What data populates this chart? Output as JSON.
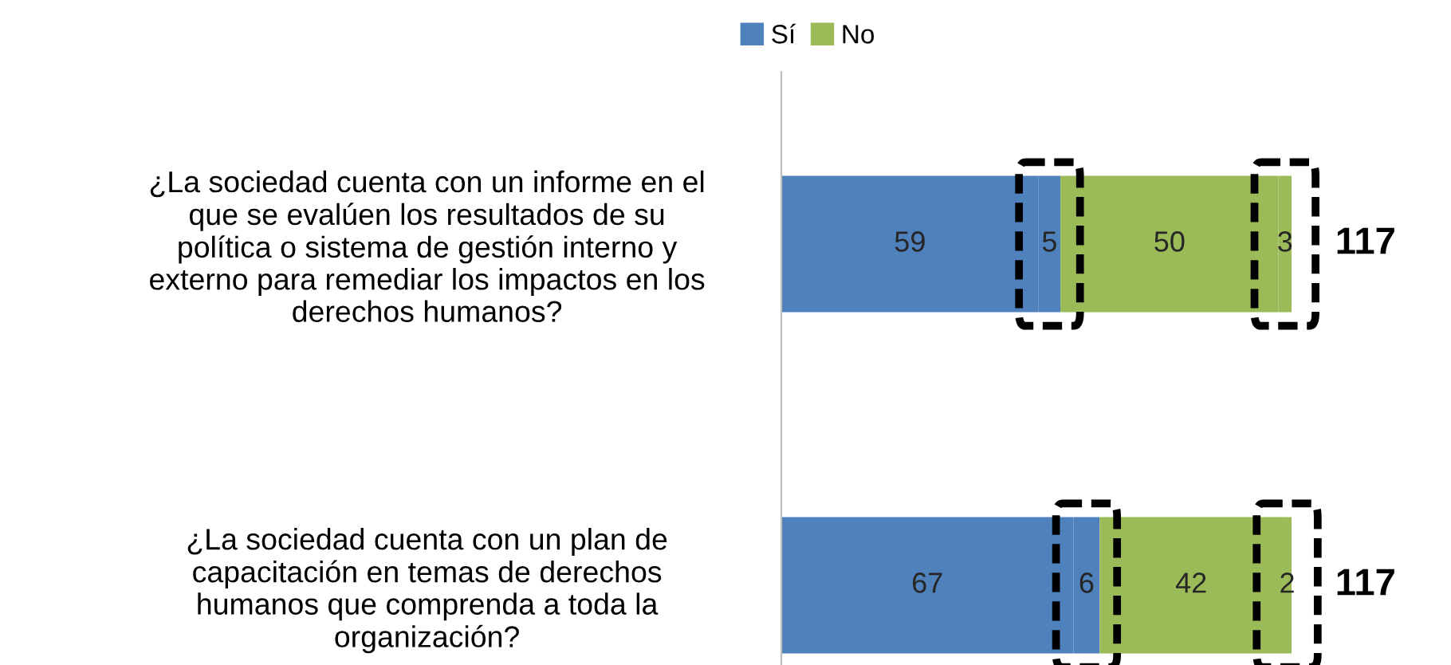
{
  "chart_data": {
    "type": "bar",
    "orientation": "horizontal",
    "stacked": true,
    "data_labels": true,
    "legend": "top",
    "grid": false,
    "categories": [
      "¿La sociedad cuenta con un informe en el\nque se evalúen los resultados de su\npolítica o sistema de gestión interno y\nexterno para remediar los impactos en los\nderechos humanos?",
      "¿La sociedad cuenta con un plan de\ncapacitación en temas de derechos\nhumanos que comprenda a toda la\norganización?"
    ],
    "series": [
      {
        "name": "Sí",
        "color": "#4f81bd",
        "values": [
          59,
          67
        ]
      },
      {
        "color": "#4f81bd",
        "values": [
          5,
          6
        ]
      },
      {
        "name": "No",
        "color": "#9bbb59",
        "values": [
          50,
          42
        ]
      },
      {
        "color": "#9bbb59",
        "values": [
          3,
          2
        ]
      }
    ],
    "totals": [
      "117",
      "117"
    ]
  }
}
